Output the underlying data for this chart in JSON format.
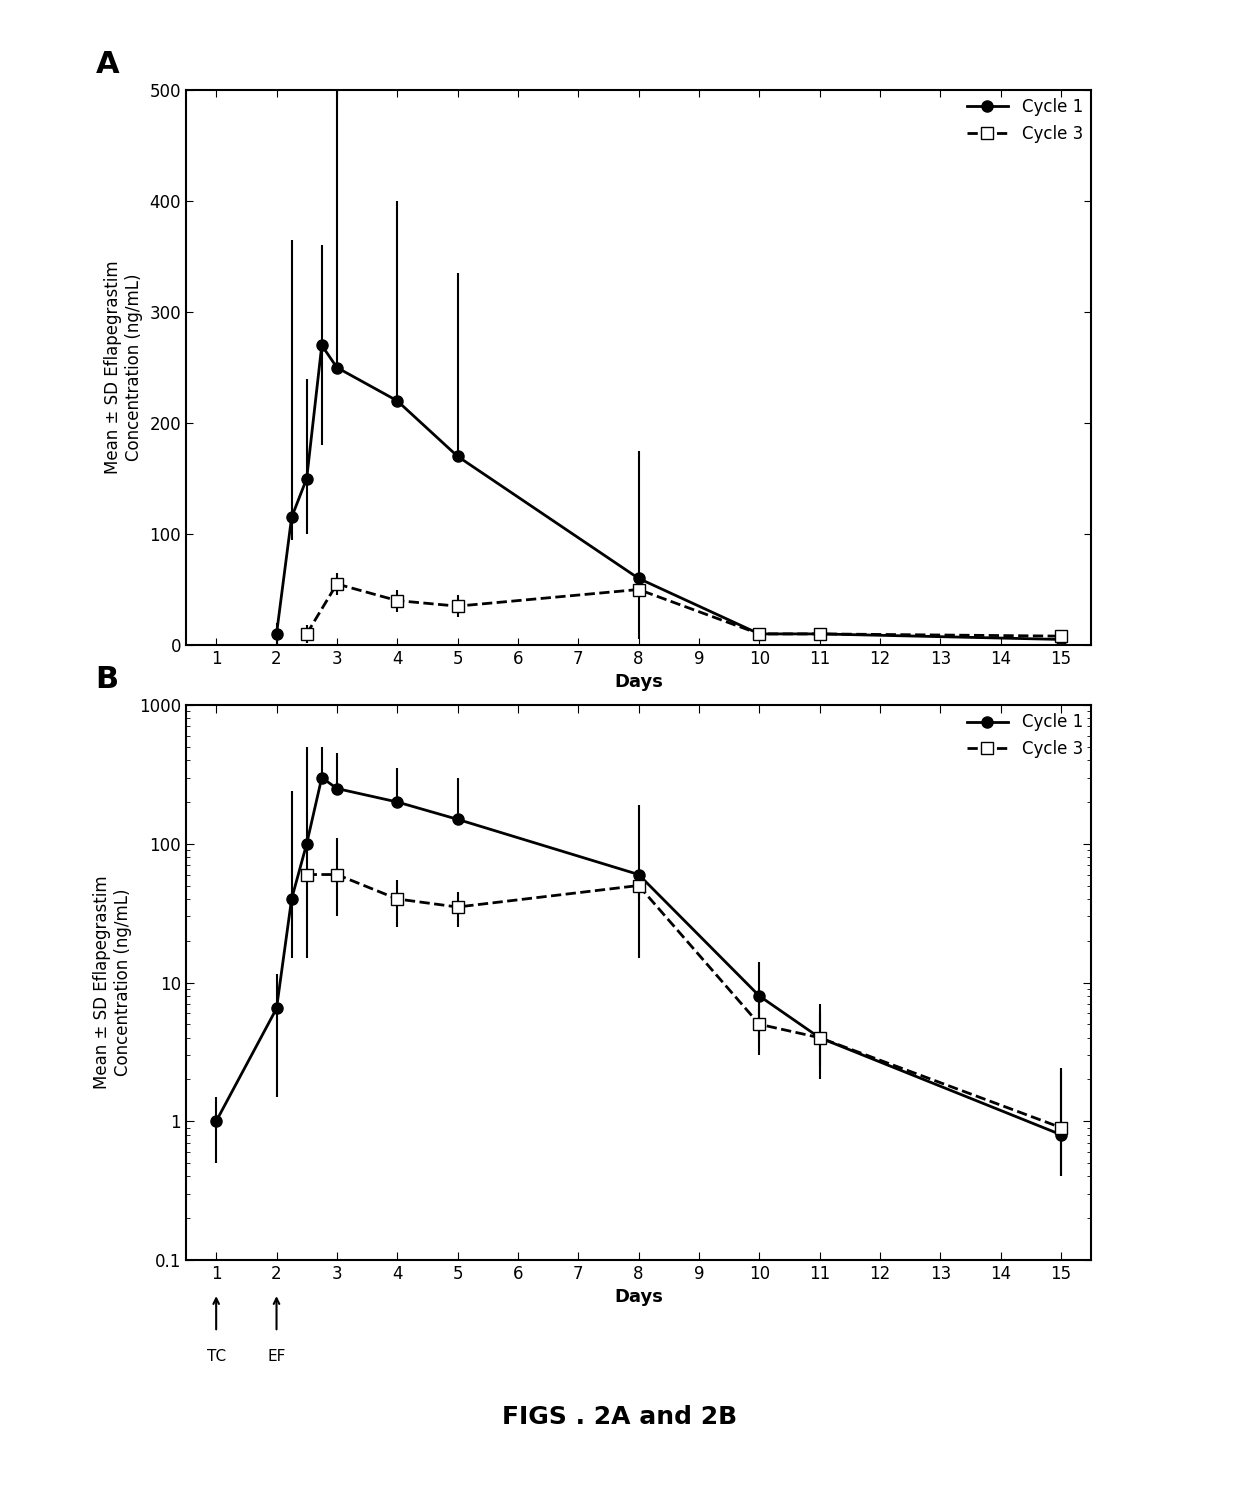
{
  "panel_A": {
    "cycle1_x": [
      2,
      2.25,
      2.5,
      2.75,
      3,
      4,
      5,
      8,
      10,
      11,
      15
    ],
    "cycle1_y": [
      10,
      115,
      150,
      270,
      250,
      220,
      170,
      60,
      10,
      10,
      5
    ],
    "cycle1_yerr_lo": [
      10,
      20,
      50,
      90,
      0,
      0,
      0,
      55,
      5,
      5,
      5
    ],
    "cycle1_yerr_hi": [
      10,
      250,
      90,
      90,
      250,
      180,
      165,
      115,
      5,
      5,
      5
    ],
    "cycle3_x": [
      2.5,
      3,
      4,
      5,
      8,
      10,
      11,
      15
    ],
    "cycle3_y": [
      10,
      55,
      40,
      35,
      50,
      10,
      10,
      8
    ],
    "cycle3_yerr_lo": [
      8,
      10,
      10,
      10,
      5,
      5,
      5,
      5
    ],
    "cycle3_yerr_hi": [
      8,
      10,
      10,
      10,
      5,
      5,
      5,
      5
    ],
    "ylabel": "Mean ± SD Eflapegrastim\nConcentration (ng/mL)",
    "xlabel": "Days",
    "ylim": [
      0,
      500
    ],
    "yticks": [
      0,
      100,
      200,
      300,
      400,
      500
    ],
    "xticks": [
      1,
      2,
      3,
      4,
      5,
      6,
      7,
      8,
      9,
      10,
      11,
      12,
      13,
      14,
      15
    ],
    "panel_label": "A"
  },
  "panel_B": {
    "cycle1_x": [
      1,
      2,
      2.25,
      2.5,
      2.75,
      3,
      4,
      5,
      8,
      10,
      11,
      15
    ],
    "cycle1_y": [
      1.0,
      6.5,
      40,
      100,
      300,
      250,
      200,
      150,
      60,
      8,
      4,
      0.8
    ],
    "cycle1_yerr_lo": [
      0.5,
      5,
      25,
      0.01,
      0.01,
      0.01,
      0.01,
      0.01,
      45,
      4,
      2,
      0.4
    ],
    "cycle1_yerr_hi": [
      0.5,
      5,
      200,
      400,
      200,
      200,
      150,
      150,
      130,
      6,
      3,
      1.5
    ],
    "cycle3_x": [
      2.5,
      3,
      4,
      5,
      8,
      10,
      11,
      15
    ],
    "cycle3_y": [
      60,
      60,
      40,
      35,
      50,
      5,
      4,
      0.9
    ],
    "cycle3_yerr_lo": [
      45,
      30,
      15,
      10,
      10,
      2,
      1.5,
      0.5
    ],
    "cycle3_yerr_hi": [
      45,
      50,
      15,
      10,
      10,
      2,
      2,
      1.5
    ],
    "ylabel": "Mean ± SD Eflapegrastim\nConcentration (ng/mL)",
    "xlabel": "Days",
    "ylim_log": [
      0.1,
      1000
    ],
    "xticks": [
      1,
      2,
      3,
      4,
      5,
      6,
      7,
      8,
      9,
      10,
      11,
      12,
      13,
      14,
      15
    ],
    "panel_label": "B",
    "tc_x": 1,
    "ef_x": 2
  },
  "legend_labels": [
    "Cycle 1",
    "Cycle 3"
  ],
  "figure_title": "FIGS . 2A and 2B",
  "line_color": "#000000",
  "cycle1_marker": "o",
  "cycle3_marker": "s",
  "cycle1_linestyle": "-",
  "cycle3_linestyle": "--"
}
